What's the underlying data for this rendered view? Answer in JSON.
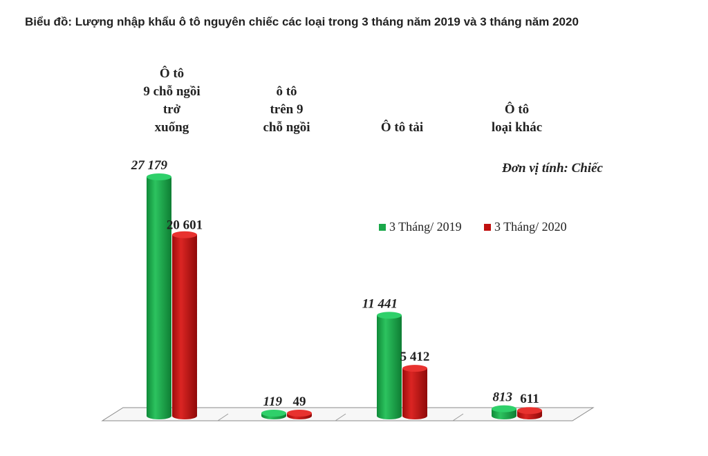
{
  "chart_data": {
    "type": "bar",
    "title": "Biểu đồ: Lượng nhập khẩu ô tô nguyên chiếc các loại trong 3 tháng năm 2019 và 3 tháng năm 2020",
    "unit_note": "Đơn vị tính: Chiếc",
    "categories": [
      [
        "Ô tô",
        "9 chỗ ngồi",
        "trở",
        "xuống"
      ],
      [
        "ô tô",
        "trên 9",
        "chỗ ngồi"
      ],
      [
        "Ô tô tải"
      ],
      [
        "Ô tô",
        "loại khác"
      ]
    ],
    "series": [
      {
        "name": "3 Tháng/ 2019",
        "values": [
          27179,
          119,
          11441,
          813
        ],
        "labels": [
          "27 179",
          "119",
          "11 441",
          "813"
        ],
        "color": "#1aa84a"
      },
      {
        "name": "3 Tháng/ 2020",
        "values": [
          20601,
          49,
          5412,
          611
        ],
        "labels": [
          "20 601",
          "49",
          "5 412",
          "611"
        ],
        "color": "#c0100f"
      }
    ],
    "legend_position": "right-middle",
    "grid": false
  }
}
